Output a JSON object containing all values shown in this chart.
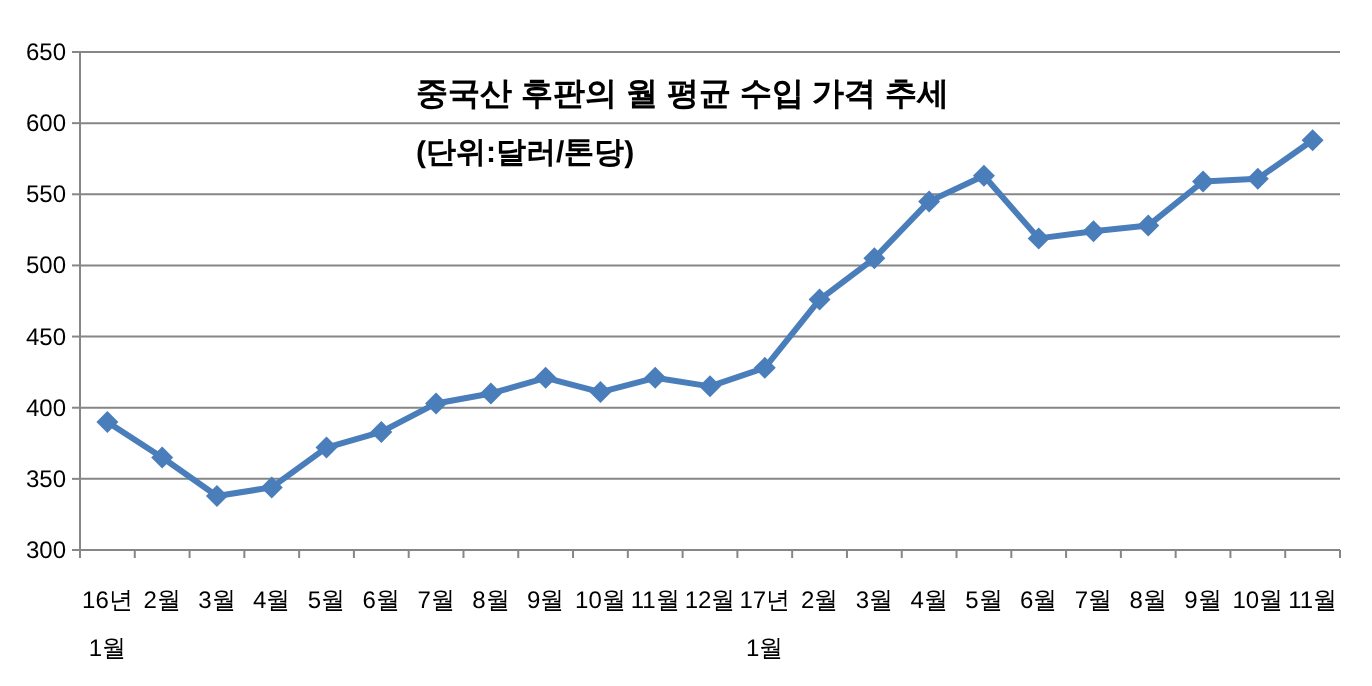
{
  "chart_data": {
    "type": "line",
    "title": "중국산 후판의 월 평균 수입 가격 추세",
    "subtitle": "(단위:달러/톤당)",
    "categories": [
      "16년 1월",
      "2월",
      "3월",
      "4월",
      "5월",
      "6월",
      "7월",
      "8월",
      "9월",
      "10월",
      "11월",
      "12월",
      "17년 1월",
      "2월",
      "3월",
      "4월",
      "5월",
      "6월",
      "7월",
      "8월",
      "9월",
      "10월",
      "11월"
    ],
    "series": [
      {
        "color": "#4a7ebb",
        "values": [
          390,
          365,
          338,
          344,
          372,
          383,
          403,
          410,
          421,
          411,
          421,
          415,
          428,
          476,
          505,
          545,
          563,
          519,
          524,
          528,
          559,
          561,
          588
        ]
      }
    ],
    "ylim": [
      300,
      650
    ],
    "yticks": [
      300,
      350,
      400,
      450,
      500,
      550,
      600,
      650
    ],
    "grid": "y",
    "marker": "diamond",
    "line_style": "solid"
  }
}
